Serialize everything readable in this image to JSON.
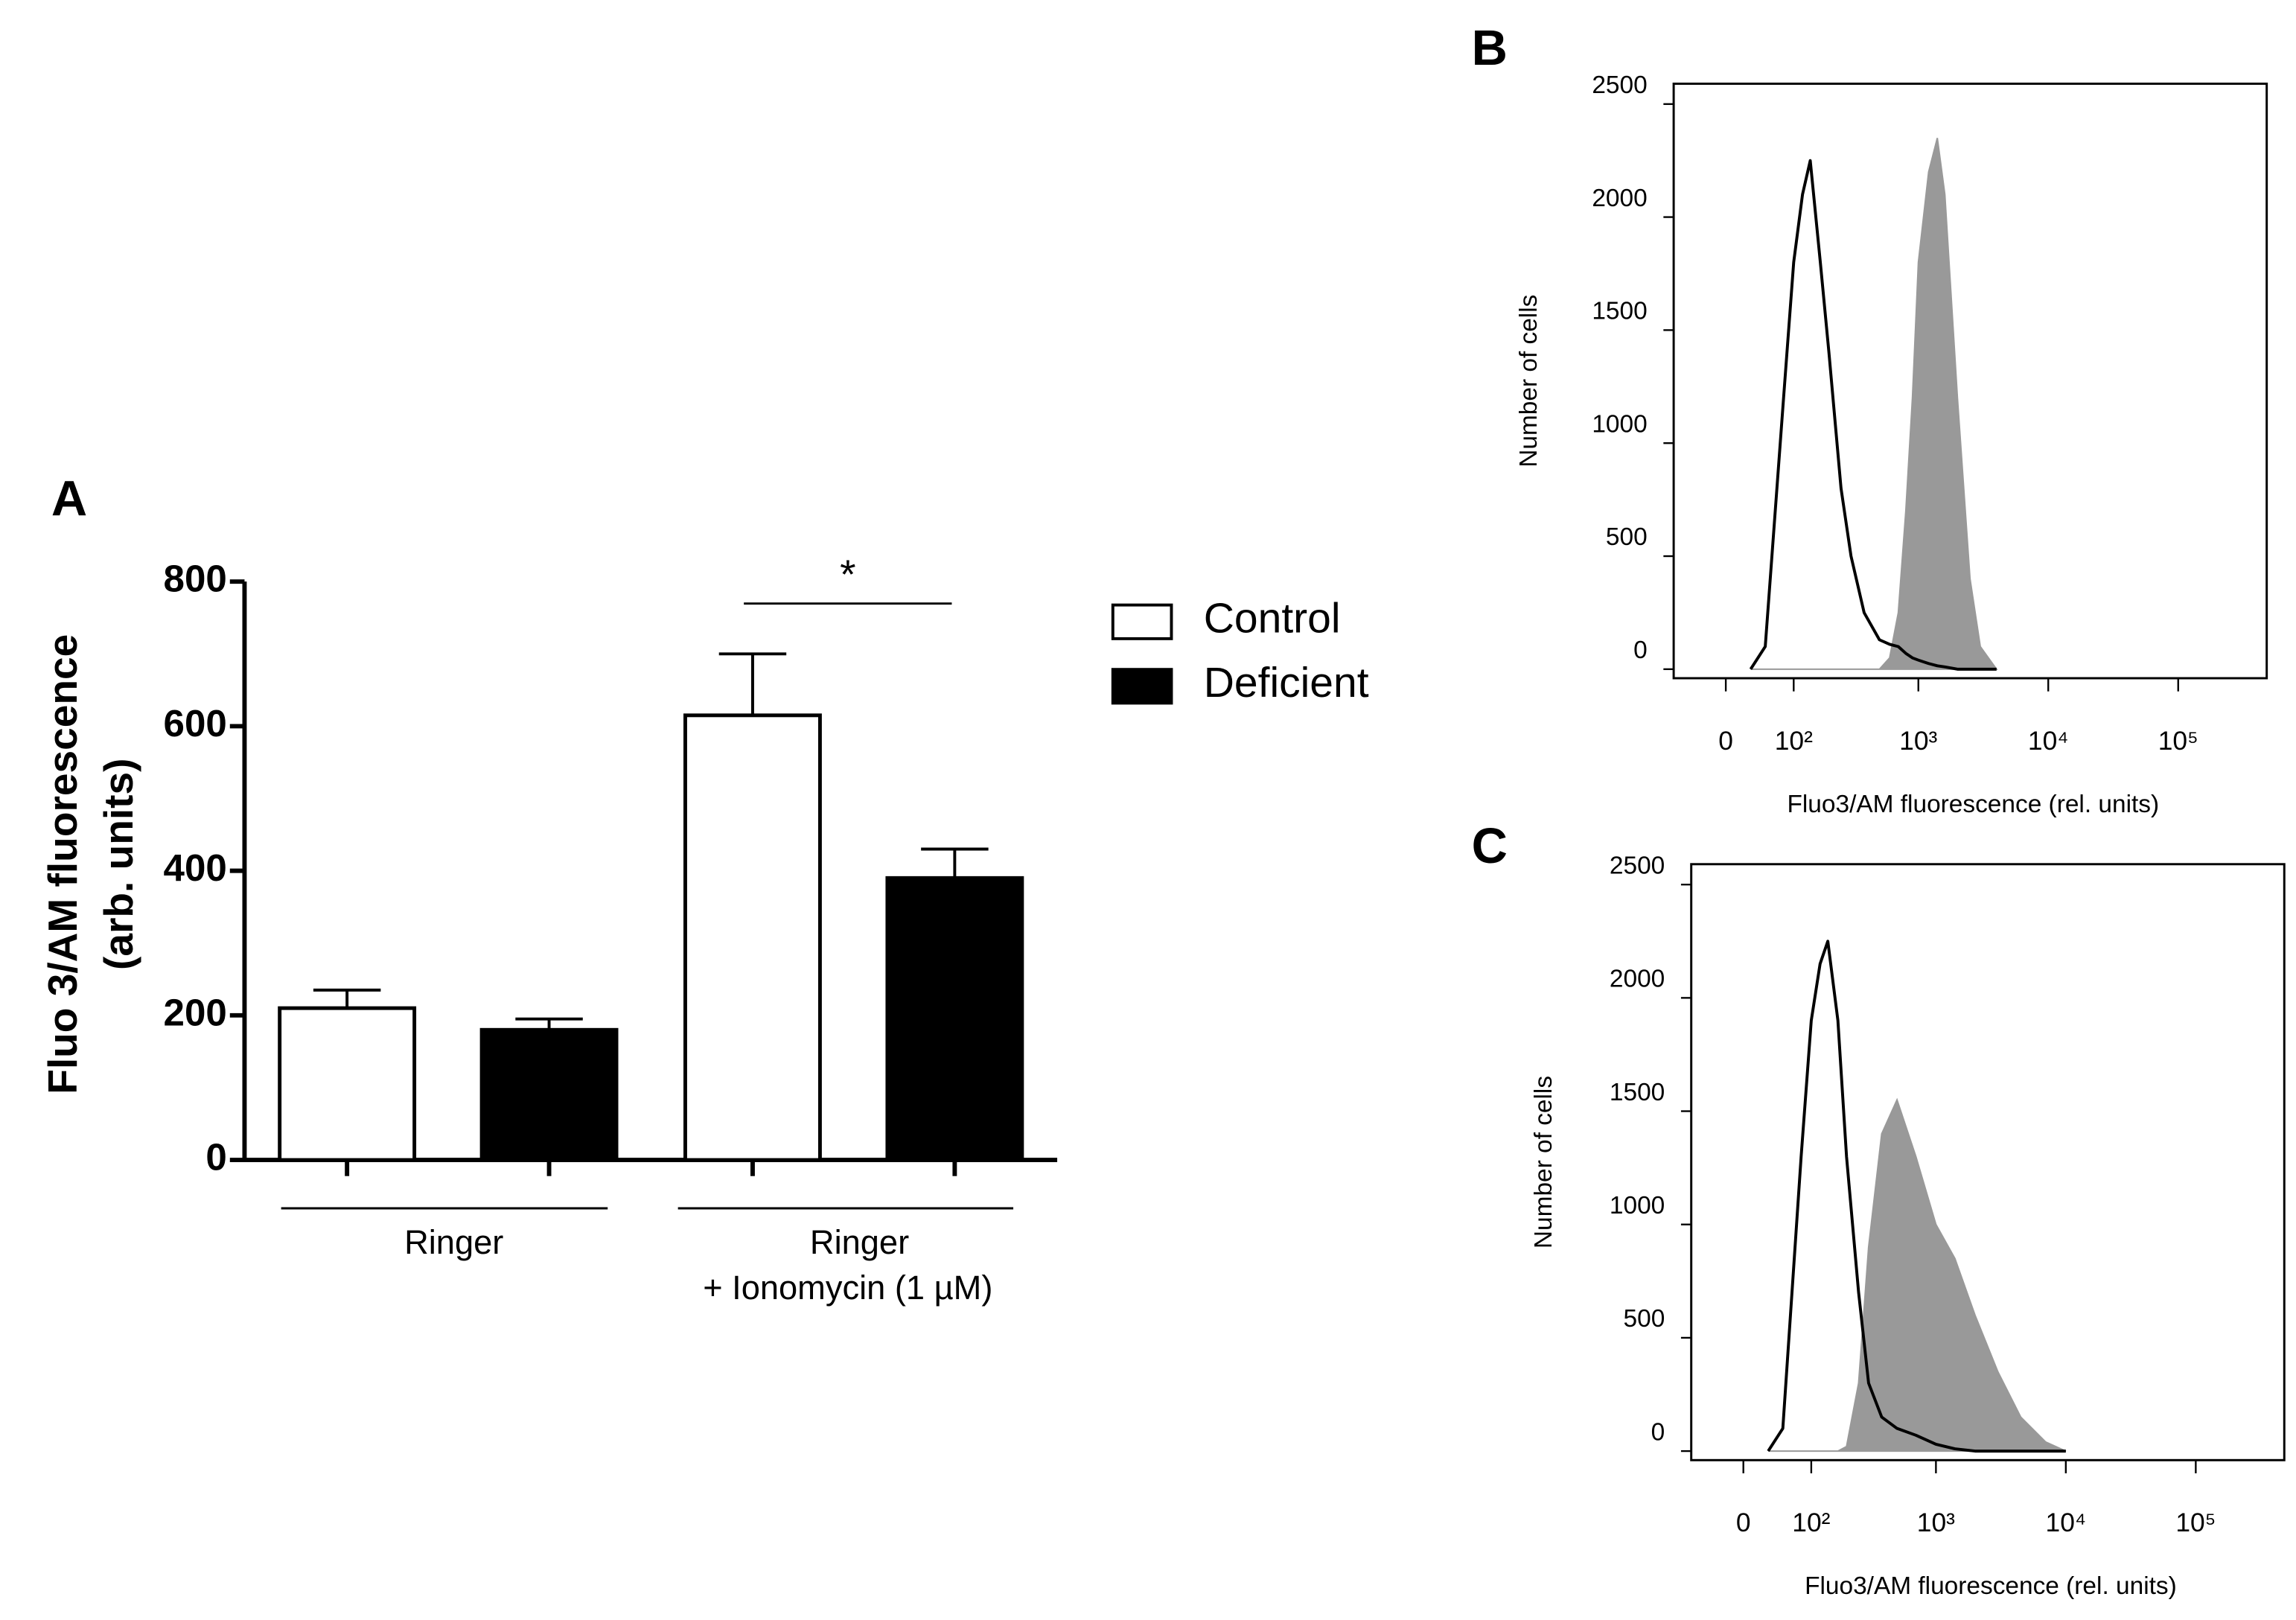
{
  "chart_data": [
    {
      "type": "bar",
      "panel_label": "A",
      "ylabel": [
        "Fluo 3/AM fluorescence",
        "(arb. units)"
      ],
      "categories": [
        "Ringer",
        "Ringer"
      ],
      "annotations": [
        {
          "text": "+ Ionomycin (1 µM)",
          "color": "#c00000"
        },
        {
          "text": "*"
        }
      ],
      "series": [
        {
          "name": "Control",
          "color": "#ffffff",
          "values": [
            210,
            615
          ],
          "errors": [
            25,
            85
          ]
        },
        {
          "name": "Deficient",
          "color": "#000000",
          "values": [
            180,
            390
          ],
          "errors": [
            15,
            40
          ]
        }
      ],
      "ylim": [
        0,
        800
      ],
      "yticks": [
        0,
        200,
        400,
        600,
        800
      ]
    },
    {
      "type": "line",
      "panel_label": "B",
      "xscale": "biexponential",
      "xlabel": "Fluo3/AM fluorescence (rel. units)",
      "ylabel": "Number of cells",
      "x": [
        30,
        50,
        80,
        100,
        120,
        140,
        170,
        200,
        250,
        300,
        380,
        500,
        600,
        700,
        800,
        900,
        1000,
        1200,
        1400,
        1600,
        2000,
        2500,
        3000,
        4000
      ],
      "series": [
        {
          "color": "#999999",
          "fill": true,
          "values": [
            0,
            0,
            0,
            0,
            0,
            0,
            0,
            0,
            0,
            0,
            0,
            0,
            50,
            250,
            700,
            1200,
            1800,
            2200,
            2350,
            2100,
            1200,
            400,
            100,
            0
          ]
        },
        {
          "color": "#000000",
          "values": [
            0,
            100,
            1200,
            1800,
            2100,
            2250,
            1800,
            1400,
            800,
            500,
            250,
            130,
            110,
            100,
            70,
            50,
            40,
            25,
            15,
            10,
            0,
            0,
            0,
            0
          ]
        }
      ],
      "xlim": [
        -70,
        480000
      ],
      "xticks": [
        {
          "value": 0,
          "label": "0"
        },
        {
          "value": 100,
          "label": "10²"
        },
        {
          "value": 1000,
          "label": "10³"
        },
        {
          "value": 10000,
          "label": "10⁴"
        },
        {
          "value": 100000,
          "label": "10⁵"
        }
      ],
      "ylim": [
        -40,
        2590
      ],
      "yticks": [
        0,
        500,
        1000,
        1500,
        2000,
        2500
      ]
    },
    {
      "type": "line",
      "panel_label": "C",
      "xscale": "biexponential",
      "xlabel": "Fluo3/AM fluorescence (rel. units)",
      "ylabel": "Number of cells",
      "x": [
        30,
        50,
        80,
        100,
        120,
        140,
        170,
        200,
        250,
        300,
        380,
        500,
        700,
        1000,
        1400,
        2000,
        3000,
        4500,
        7000,
        10000
      ],
      "series": [
        {
          "color": "#999999",
          "fill": true,
          "values": [
            0,
            0,
            0,
            0,
            0,
            0,
            0,
            20,
            300,
            900,
            1400,
            1550,
            1300,
            1000,
            850,
            600,
            350,
            150,
            40,
            0
          ]
        },
        {
          "color": "#000000",
          "values": [
            0,
            100,
            1300,
            1900,
            2150,
            2250,
            1900,
            1300,
            700,
            300,
            150,
            100,
            70,
            30,
            10,
            0,
            0,
            0,
            0,
            0
          ]
        }
      ],
      "xlim": [
        -70,
        480000
      ],
      "xticks": [
        {
          "value": 0,
          "label": "0"
        },
        {
          "value": 100,
          "label": "10²"
        },
        {
          "value": 1000,
          "label": "10³"
        },
        {
          "value": 10000,
          "label": "10⁴"
        },
        {
          "value": 100000,
          "label": "10⁵"
        }
      ],
      "ylim": [
        -40,
        2590
      ],
      "yticks": [
        0,
        500,
        1000,
        1500,
        2000,
        2500
      ]
    }
  ]
}
